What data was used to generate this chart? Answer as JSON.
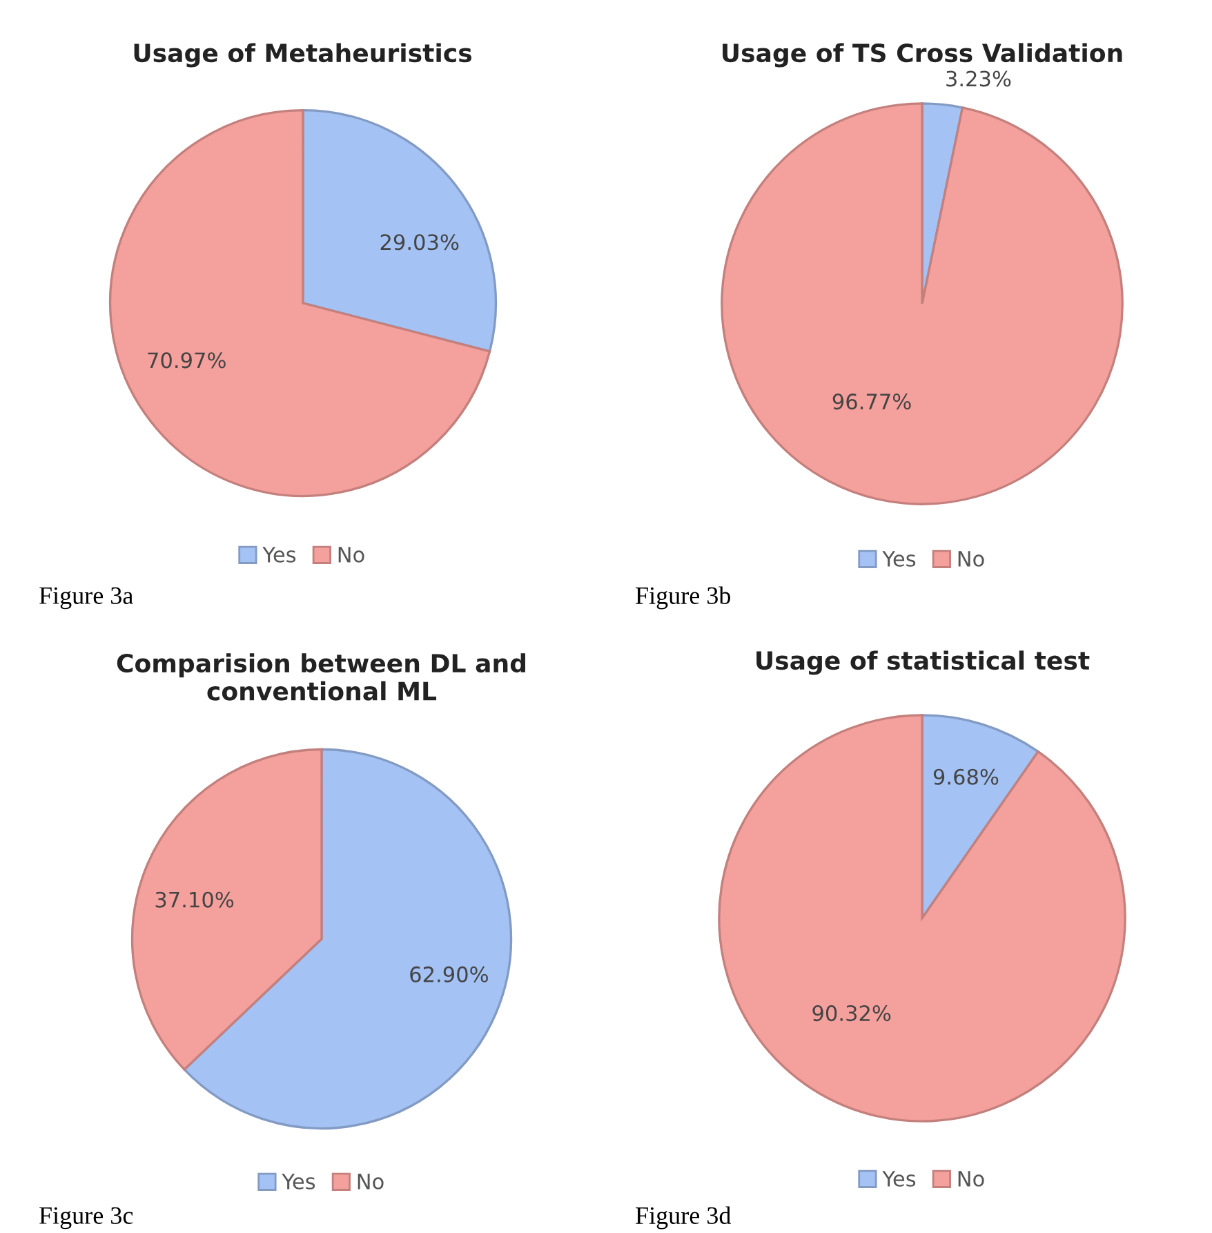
{
  "chart_data": [
    {
      "type": "pie",
      "title": "Usage of Metaheuristics",
      "categories": [
        "Yes",
        "No"
      ],
      "values": [
        29.03,
        70.97
      ],
      "colors": [
        "#a4c2f4",
        "#f4a09c"
      ],
      "value_labels": [
        "29.03%",
        "70.97%"
      ],
      "legend": "bottom",
      "annotations": [
        "Figure 3a"
      ]
    },
    {
      "type": "pie",
      "title": "Usage of TS Cross Validation",
      "categories": [
        "Yes",
        "No"
      ],
      "values": [
        3.23,
        96.77
      ],
      "colors": [
        "#a4c2f4",
        "#f4a09c"
      ],
      "value_labels": [
        "3.23%",
        "96.77%"
      ],
      "legend": "bottom",
      "annotations": [
        "Figure 3b"
      ]
    },
    {
      "type": "pie",
      "title": "Comparision between DL and\nconventional ML",
      "categories": [
        "Yes",
        "No"
      ],
      "values": [
        62.9,
        37.1
      ],
      "colors": [
        "#a4c2f4",
        "#f4a09c"
      ],
      "value_labels": [
        "62.90%",
        "37.10%"
      ],
      "legend": "bottom",
      "annotations": [
        "Figure 3c"
      ]
    },
    {
      "type": "pie",
      "title": "Usage of statistical test",
      "categories": [
        "Yes",
        "No"
      ],
      "values": [
        9.68,
        90.32
      ],
      "colors": [
        "#a4c2f4",
        "#f4a09c"
      ],
      "value_labels": [
        "9.68%",
        "90.32%"
      ],
      "legend": "bottom",
      "annotations": [
        "Figure 3d"
      ]
    }
  ]
}
